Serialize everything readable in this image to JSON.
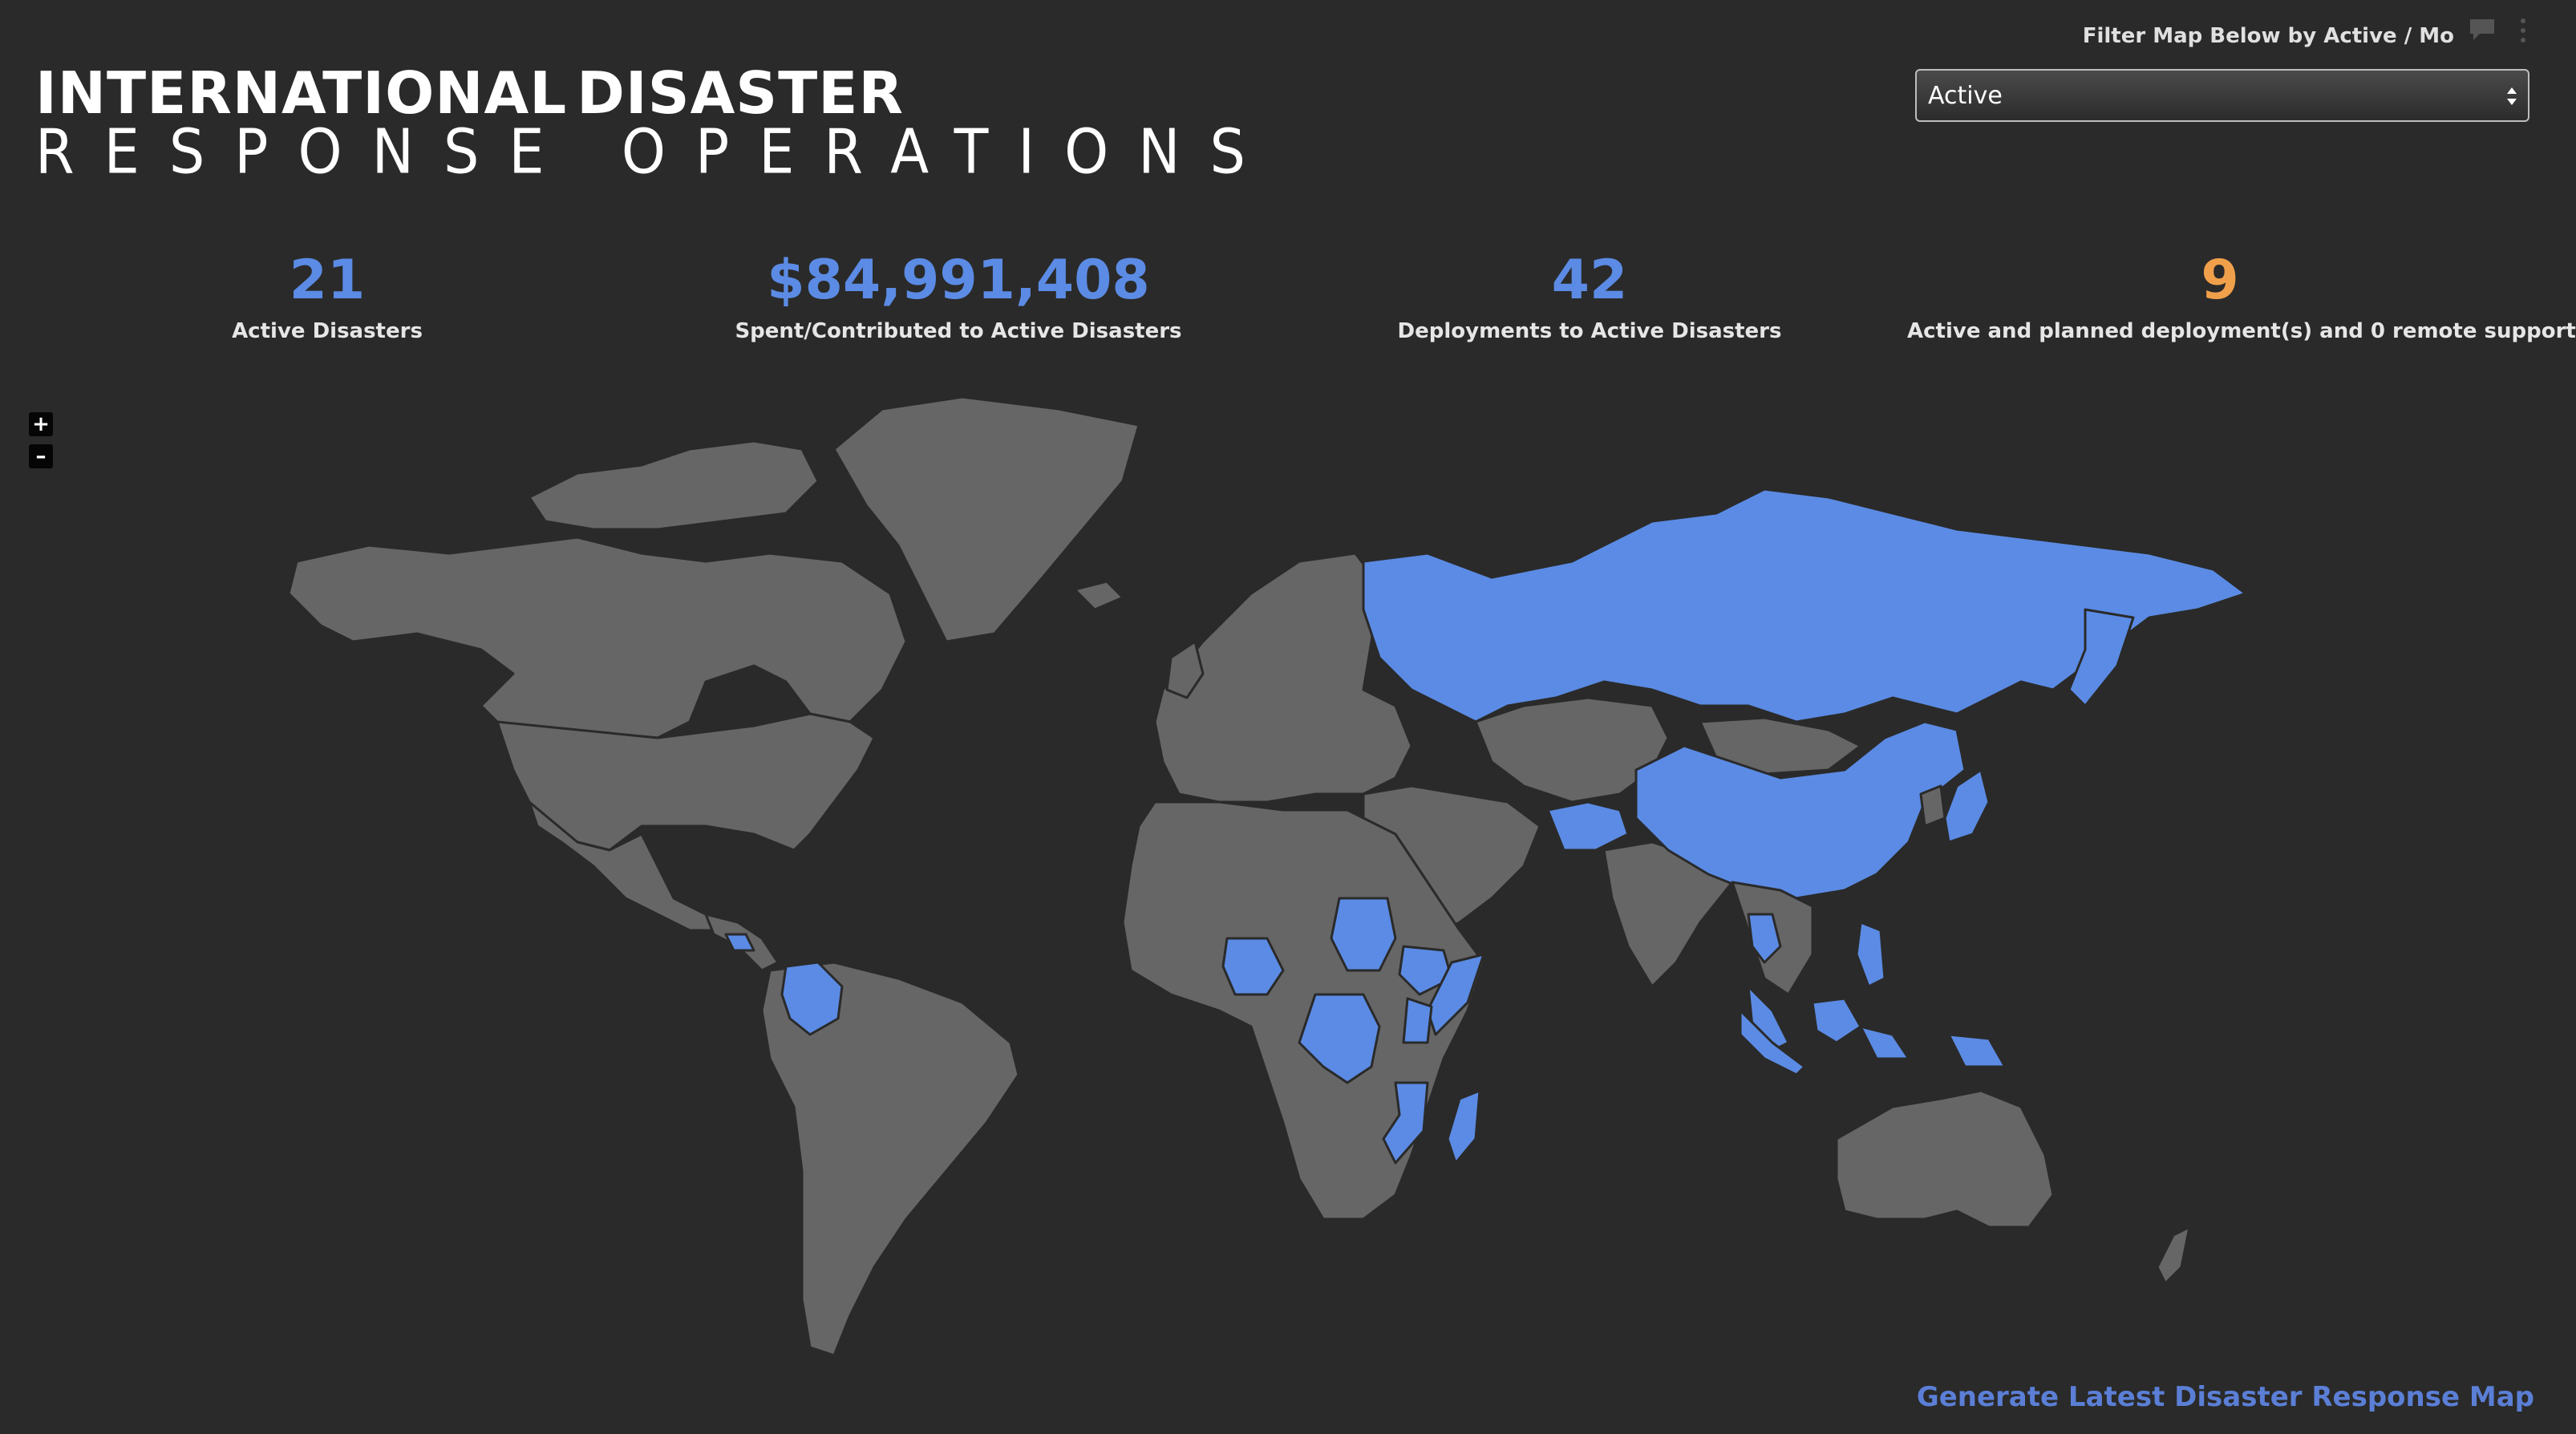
{
  "logo": {
    "line1_left": "INTERNATIONAL",
    "line1_right": "DISASTER",
    "line2": "RESPONSE OPERATIONS",
    "accent_color": "#e0453a"
  },
  "filter": {
    "label": "Filter Map Below by Active / Mo",
    "selected": "Active"
  },
  "kpis": [
    {
      "value": "21",
      "label": "Active Disasters",
      "color": "#5b8be4"
    },
    {
      "value": "$84,991,408",
      "label": "Spent/Contributed to Active Disasters",
      "color": "#5b8be4"
    },
    {
      "value": "42",
      "label": "Deployments to Active Disasters",
      "color": "#5b8be4"
    },
    {
      "value": "9",
      "label": "Active and planned deployment(s) and 0 remote support",
      "color": "#f0a04a"
    }
  ],
  "zoom": {
    "in_label": "+",
    "out_label": "–"
  },
  "map": {
    "land_color": "#666666",
    "highlight_color": "#5b8be4",
    "highlighted_countries": [
      "Russia",
      "China",
      "Afghanistan",
      "Colombia",
      "Honduras",
      "Nigeria",
      "Sudan",
      "Ethiopia",
      "Somalia",
      "Kenya",
      "Democratic Republic of the Congo",
      "Mozambique",
      "Madagascar",
      "Thailand",
      "Malaysia",
      "Indonesia",
      "Philippines",
      "Papua New Guinea",
      "Japan"
    ]
  },
  "footer": {
    "generate_link": "Generate Latest Disaster Response Map"
  }
}
